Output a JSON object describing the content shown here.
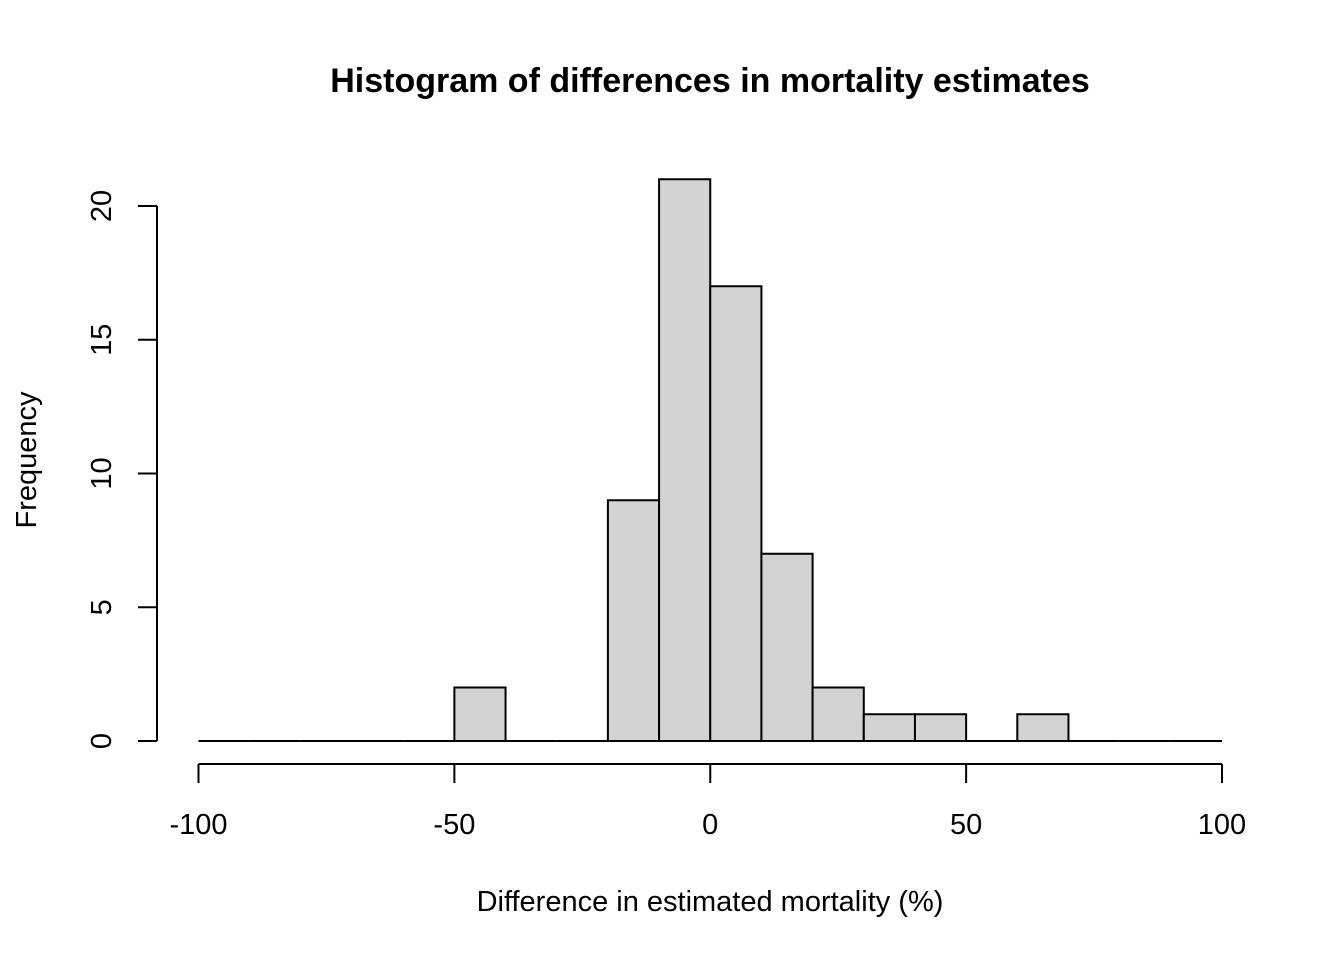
{
  "chart_data": {
    "type": "bar",
    "title": "Histogram of differences in mortality estimates",
    "xlabel": "Difference in estimated mortality (%)",
    "ylabel": "Frequency",
    "bin_edges": [
      -100,
      -90,
      -80,
      -70,
      -60,
      -50,
      -40,
      -30,
      -20,
      -10,
      0,
      10,
      20,
      30,
      40,
      50,
      60,
      70,
      80,
      90,
      100
    ],
    "values": [
      0,
      0,
      0,
      0,
      0,
      2,
      0,
      0,
      9,
      21,
      17,
      7,
      2,
      1,
      1,
      0,
      1,
      0,
      0,
      0
    ],
    "xlim": [
      -100,
      100
    ],
    "ylim": [
      0,
      21
    ],
    "x_ticks": [
      -100,
      -50,
      0,
      50,
      100
    ],
    "x_tick_labels": [
      "-100",
      "-50",
      "0",
      "50",
      "100"
    ],
    "y_ticks": [
      0,
      5,
      10,
      15,
      20
    ],
    "y_tick_labels": [
      "0",
      "5",
      "10",
      "15",
      "20"
    ],
    "bar_color": "#d3d3d3",
    "grid": false
  }
}
